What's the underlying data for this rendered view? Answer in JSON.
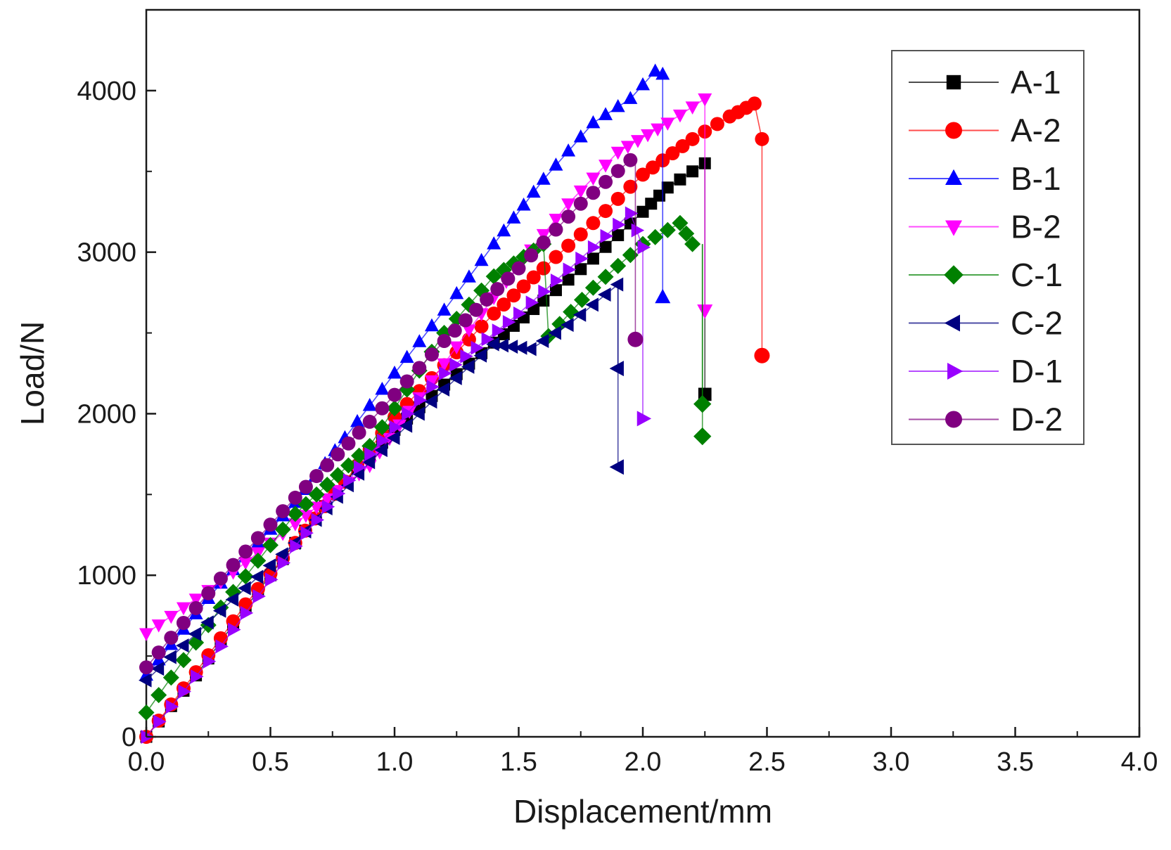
{
  "chart_data": {
    "type": "line",
    "title": "",
    "xlabel": "Displacement/mm",
    "ylabel": "Load/N",
    "xlim": [
      0,
      4.0
    ],
    "ylim": [
      0,
      4500
    ],
    "xticks": [
      "0.0",
      "0.5",
      "1.0",
      "1.5",
      "2.0",
      "2.5",
      "3.0",
      "3.5",
      "4.0"
    ],
    "yticks": [
      "0",
      "1000",
      "2000",
      "3000",
      "4000"
    ],
    "grid": false,
    "legend_position": "top-right",
    "series": [
      {
        "name": "A-1",
        "color": "#000000",
        "marker": "square",
        "points": [
          [
            0,
            0
          ],
          [
            0.2,
            380
          ],
          [
            0.4,
            800
          ],
          [
            0.6,
            1200
          ],
          [
            0.8,
            1580
          ],
          [
            1.0,
            1900
          ],
          [
            1.2,
            2180
          ],
          [
            1.4,
            2440
          ],
          [
            1.6,
            2700
          ],
          [
            1.8,
            2960
          ],
          [
            2.0,
            3250
          ],
          [
            2.1,
            3400
          ],
          [
            2.25,
            3550
          ]
        ],
        "drops": [
          [
            2.25,
            2120
          ]
        ]
      },
      {
        "name": "A-2",
        "color": "#ff0000",
        "marker": "circle",
        "points": [
          [
            0,
            0
          ],
          [
            0.2,
            400
          ],
          [
            0.4,
            820
          ],
          [
            0.6,
            1200
          ],
          [
            0.8,
            1580
          ],
          [
            1.0,
            1980
          ],
          [
            1.2,
            2300
          ],
          [
            1.4,
            2620
          ],
          [
            1.6,
            2900
          ],
          [
            1.8,
            3180
          ],
          [
            2.0,
            3480
          ],
          [
            2.2,
            3700
          ],
          [
            2.35,
            3840
          ],
          [
            2.45,
            3920
          ],
          [
            2.48,
            3700
          ]
        ],
        "drops": [
          [
            2.48,
            2360
          ]
        ]
      },
      {
        "name": "B-1",
        "color": "#0000ff",
        "marker": "triangle-up",
        "points": [
          [
            0,
            380
          ],
          [
            0.3,
            950
          ],
          [
            0.6,
            1450
          ],
          [
            0.8,
            1850
          ],
          [
            1.0,
            2250
          ],
          [
            1.2,
            2640
          ],
          [
            1.4,
            3050
          ],
          [
            1.6,
            3450
          ],
          [
            1.8,
            3800
          ],
          [
            1.95,
            3950
          ],
          [
            2.05,
            4120
          ],
          [
            2.08,
            4100
          ]
        ],
        "drops": [
          [
            2.08,
            2720
          ]
        ]
      },
      {
        "name": "B-2",
        "color": "#ff00ff",
        "marker": "triangle-down",
        "points": [
          [
            0,
            640
          ],
          [
            0.3,
            960
          ],
          [
            0.6,
            1320
          ],
          [
            0.9,
            1680
          ],
          [
            1.1,
            2100
          ],
          [
            1.3,
            2520
          ],
          [
            1.5,
            2920
          ],
          [
            1.7,
            3300
          ],
          [
            1.9,
            3620
          ],
          [
            2.1,
            3800
          ],
          [
            2.25,
            3950
          ]
        ],
        "drops": [
          [
            2.25,
            2640
          ]
        ]
      },
      {
        "name": "C-1",
        "color": "#008000",
        "marker": "diamond",
        "points": [
          [
            0,
            150
          ],
          [
            0.3,
            800
          ],
          [
            0.6,
            1380
          ],
          [
            0.9,
            1800
          ],
          [
            1.2,
            2500
          ],
          [
            1.4,
            2850
          ],
          [
            1.6,
            3050
          ],
          [
            1.62,
            2480
          ],
          [
            1.8,
            2780
          ],
          [
            2.0,
            3050
          ],
          [
            2.15,
            3180
          ],
          [
            2.2,
            3050
          ]
        ],
        "drops": [
          [
            2.24,
            2060
          ],
          [
            2.24,
            1860
          ]
        ]
      },
      {
        "name": "C-2",
        "color": "#000080",
        "marker": "triangle-left",
        "points": [
          [
            0,
            350
          ],
          [
            0.3,
            780
          ],
          [
            0.6,
            1200
          ],
          [
            0.9,
            1700
          ],
          [
            1.2,
            2150
          ],
          [
            1.4,
            2430
          ],
          [
            1.55,
            2400
          ],
          [
            1.7,
            2550
          ],
          [
            1.9,
            2800
          ]
        ],
        "drops": [
          [
            1.9,
            2280
          ],
          [
            1.9,
            1670
          ]
        ]
      },
      {
        "name": "D-1",
        "color": "#9900ff",
        "marker": "triangle-right",
        "points": [
          [
            0,
            0
          ],
          [
            0.3,
            560
          ],
          [
            0.6,
            1180
          ],
          [
            0.9,
            1750
          ],
          [
            1.2,
            2250
          ],
          [
            1.5,
            2620
          ],
          [
            1.75,
            2960
          ],
          [
            1.95,
            3240
          ],
          [
            2.0,
            3030
          ]
        ],
        "drops": [
          [
            2.0,
            1970
          ]
        ]
      },
      {
        "name": "D-2",
        "color": "#800080",
        "marker": "circle",
        "points": [
          [
            0,
            430
          ],
          [
            0.3,
            980
          ],
          [
            0.6,
            1480
          ],
          [
            0.9,
            1950
          ],
          [
            1.2,
            2450
          ],
          [
            1.5,
            2900
          ],
          [
            1.75,
            3300
          ],
          [
            1.95,
            3570
          ]
        ],
        "drops": [
          [
            1.97,
            2460
          ]
        ]
      }
    ]
  }
}
